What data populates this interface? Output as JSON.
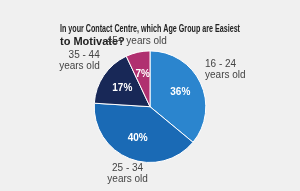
{
  "chart_data": {
    "type": "pie",
    "title": "In your Contact Centre, which Age Group are Easiest to Motivate?",
    "categories": [
      "16 - 24\nyears old",
      "25 - 34\nyears old",
      "35 - 44\nyears old",
      "45+ years old"
    ],
    "values": [
      36,
      40,
      17,
      7
    ],
    "value_labels": [
      "36%",
      "40%",
      "17%",
      "7%"
    ],
    "colors": [
      "#2b85ce",
      "#1a6ab5",
      "#182857",
      "#b03070"
    ],
    "data_labels": true
  }
}
